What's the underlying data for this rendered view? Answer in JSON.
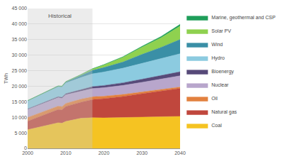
{
  "chart_data": {
    "type": "area",
    "stacked": true,
    "y_label": "TWh",
    "x": [
      2000,
      2005,
      2008,
      2009,
      2010,
      2014,
      2017,
      2020,
      2025,
      2030,
      2035,
      2040
    ],
    "series": [
      {
        "name": "Coal",
        "color": "#f5c322",
        "values": [
          5990,
          7350,
          8250,
          8100,
          8660,
          9700,
          9860,
          9800,
          9900,
          10000,
          10150,
          10300
        ]
      },
      {
        "name": "Natural gas",
        "color": "#c0473d",
        "values": [
          2750,
          3750,
          4250,
          4300,
          4840,
          5150,
          5860,
          6200,
          6800,
          7600,
          8300,
          9000
        ]
      },
      {
        "name": "Oil",
        "color": "#e2813f",
        "values": [
          1200,
          1150,
          1100,
          1030,
          970,
          1000,
          880,
          780,
          650,
          550,
          500,
          450
        ]
      },
      {
        "name": "Nuclear",
        "color": "#b8a6cc",
        "values": [
          2590,
          2770,
          2730,
          2700,
          2760,
          2530,
          2640,
          2750,
          2900,
          3100,
          3350,
          3600
        ]
      },
      {
        "name": "Bioenergy",
        "color": "#574a79",
        "values": [
          160,
          230,
          280,
          300,
          370,
          500,
          620,
          700,
          850,
          1000,
          1150,
          1300
        ]
      },
      {
        "name": "Hydro",
        "color": "#8ccbe0",
        "values": [
          2620,
          2930,
          3200,
          3250,
          3440,
          3900,
          4110,
          4350,
          4700,
          5100,
          5450,
          5800
        ]
      },
      {
        "name": "Wind",
        "color": "#3a8fa6",
        "values": [
          30,
          100,
          220,
          270,
          340,
          710,
          1130,
          1450,
          2000,
          2900,
          3600,
          4600
        ]
      },
      {
        "name": "Solar PV",
        "color": "#8fd14f",
        "values": [
          1,
          3,
          12,
          20,
          30,
          190,
          440,
          800,
          1500,
          2300,
          3100,
          4300
        ]
      },
      {
        "name": "Marine, geothermal and CSP",
        "color": "#1f9e5a",
        "values": [
          50,
          60,
          70,
          70,
          80,
          90,
          100,
          130,
          180,
          280,
          400,
          550
        ]
      }
    ],
    "xlim": [
      2000,
      2040
    ],
    "xticks": [
      2000,
      2010,
      2020,
      2030,
      2040
    ],
    "ylim": [
      0,
      45000
    ],
    "yticks": [
      {
        "value": 0,
        "label": "0"
      },
      {
        "value": 5000,
        "label": "5 000"
      },
      {
        "value": 10000,
        "label": "10 000"
      },
      {
        "value": 15000,
        "label": "15 000"
      },
      {
        "value": 20000,
        "label": "20 000"
      },
      {
        "value": 25000,
        "label": "25 000"
      },
      {
        "value": 30000,
        "label": "30 000"
      },
      {
        "value": 35000,
        "label": "35 000"
      },
      {
        "value": 40000,
        "label": "40 000"
      },
      {
        "value": 45000,
        "label": "45 000"
      }
    ],
    "annotations": [
      {
        "text": "Historical",
        "x": [
          2000,
          2017
        ]
      }
    ],
    "grid": true,
    "legend": "right"
  }
}
